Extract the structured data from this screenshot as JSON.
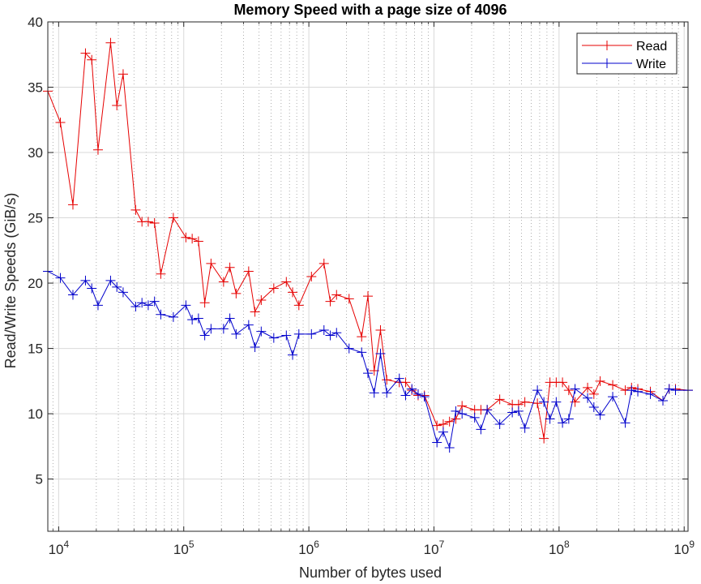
{
  "chart_data": {
    "type": "line",
    "title": "Memory Speed with a page size of 4096",
    "xlabel": "Number of bytes used",
    "ylabel": "Read/Write Speeds (GiB/s)",
    "xscale": "log",
    "xlim": [
      8192,
      1073741824
    ],
    "ylim": [
      1,
      40
    ],
    "yticks": [
      5,
      10,
      15,
      20,
      25,
      30,
      35,
      40
    ],
    "xticks": [
      {
        "value": 10000,
        "base": "10",
        "exp": "4"
      },
      {
        "value": 100000,
        "base": "10",
        "exp": "5"
      },
      {
        "value": 1000000,
        "base": "10",
        "exp": "6"
      },
      {
        "value": 10000000,
        "base": "10",
        "exp": "7"
      },
      {
        "value": 100000000,
        "base": "10",
        "exp": "8"
      },
      {
        "value": 1000000000,
        "base": "10",
        "exp": "9"
      }
    ],
    "grid": true,
    "legend_position": "top-right",
    "x": [
      8192,
      10321,
      13004,
      16384,
      18390,
      20643,
      26008,
      29193,
      32768,
      41285,
      46341,
      52016,
      58386,
      65536,
      82570,
      104032,
      116772,
      131072,
      147123,
      165140,
      208064,
      233544,
      262144,
      330281,
      370728,
      416128,
      524288,
      660561,
      741455,
      832255,
      1048576,
      1321123,
      1482910,
      1664510,
      2097152,
      2642245,
      2965821,
      3329021,
      3736638,
      4194304,
      5284491,
      5931642,
      6658042,
      7473276,
      8388608,
      10568983,
      11863283,
      13316085,
      14946553,
      16777216,
      21137965,
      23726566,
      26632170,
      33554432,
      42275931,
      47453133,
      53264340,
      67108864,
      75662924,
      84551863,
      94906265,
      106528681,
      119575021,
      134217728,
      169103725,
      189812531,
      213057362,
      268435456,
      338207450,
      379625062,
      426114725,
      536870912,
      676414901,
      759250125,
      852229450,
      1073741824
    ],
    "series": [
      {
        "name": "Read",
        "color": "#e60000",
        "values": [
          34.7,
          32.3,
          26.0,
          37.6,
          37.1,
          30.2,
          38.4,
          33.6,
          36.0,
          25.6,
          24.7,
          24.7,
          24.6,
          20.7,
          25.0,
          23.5,
          23.4,
          23.2,
          18.5,
          21.5,
          20.1,
          21.2,
          19.2,
          20.9,
          17.8,
          18.7,
          19.6,
          20.1,
          19.3,
          18.3,
          20.5,
          21.5,
          18.6,
          19.1,
          18.8,
          15.9,
          19.0,
          13.3,
          16.4,
          12.6,
          12.4,
          12.4,
          11.8,
          11.4,
          11.4,
          9.1,
          9.2,
          9.4,
          9.6,
          10.6,
          10.3,
          10.3,
          10.3,
          11.1,
          10.7,
          10.7,
          10.9,
          10.8,
          8.1,
          12.4,
          12.4,
          12.4,
          11.8,
          10.9,
          12.0,
          11.5,
          12.5,
          12.2,
          11.8,
          12.0,
          11.9,
          11.7,
          11.0,
          11.9,
          11.9,
          11.8
        ]
      },
      {
        "name": "Write",
        "color": "#0000cc",
        "values": [
          20.9,
          20.4,
          19.1,
          20.2,
          19.6,
          18.3,
          20.2,
          19.7,
          19.3,
          18.2,
          18.5,
          18.3,
          18.6,
          17.6,
          17.4,
          18.3,
          17.2,
          17.3,
          16.0,
          16.5,
          16.5,
          17.3,
          16.1,
          16.8,
          15.1,
          16.3,
          15.8,
          16.0,
          14.5,
          16.1,
          16.1,
          16.4,
          16.0,
          16.2,
          15.0,
          14.7,
          13.1,
          11.6,
          14.6,
          11.6,
          12.7,
          11.4,
          11.9,
          11.5,
          11.3,
          7.8,
          8.6,
          7.4,
          10.2,
          10.0,
          9.7,
          8.8,
          10.3,
          9.2,
          10.1,
          10.2,
          8.9,
          11.8,
          10.9,
          9.6,
          10.9,
          9.3,
          9.6,
          11.9,
          11.2,
          10.5,
          9.9,
          11.3,
          9.3,
          11.8,
          11.7,
          11.5,
          11.0,
          11.9,
          11.8,
          11.8
        ]
      }
    ]
  }
}
